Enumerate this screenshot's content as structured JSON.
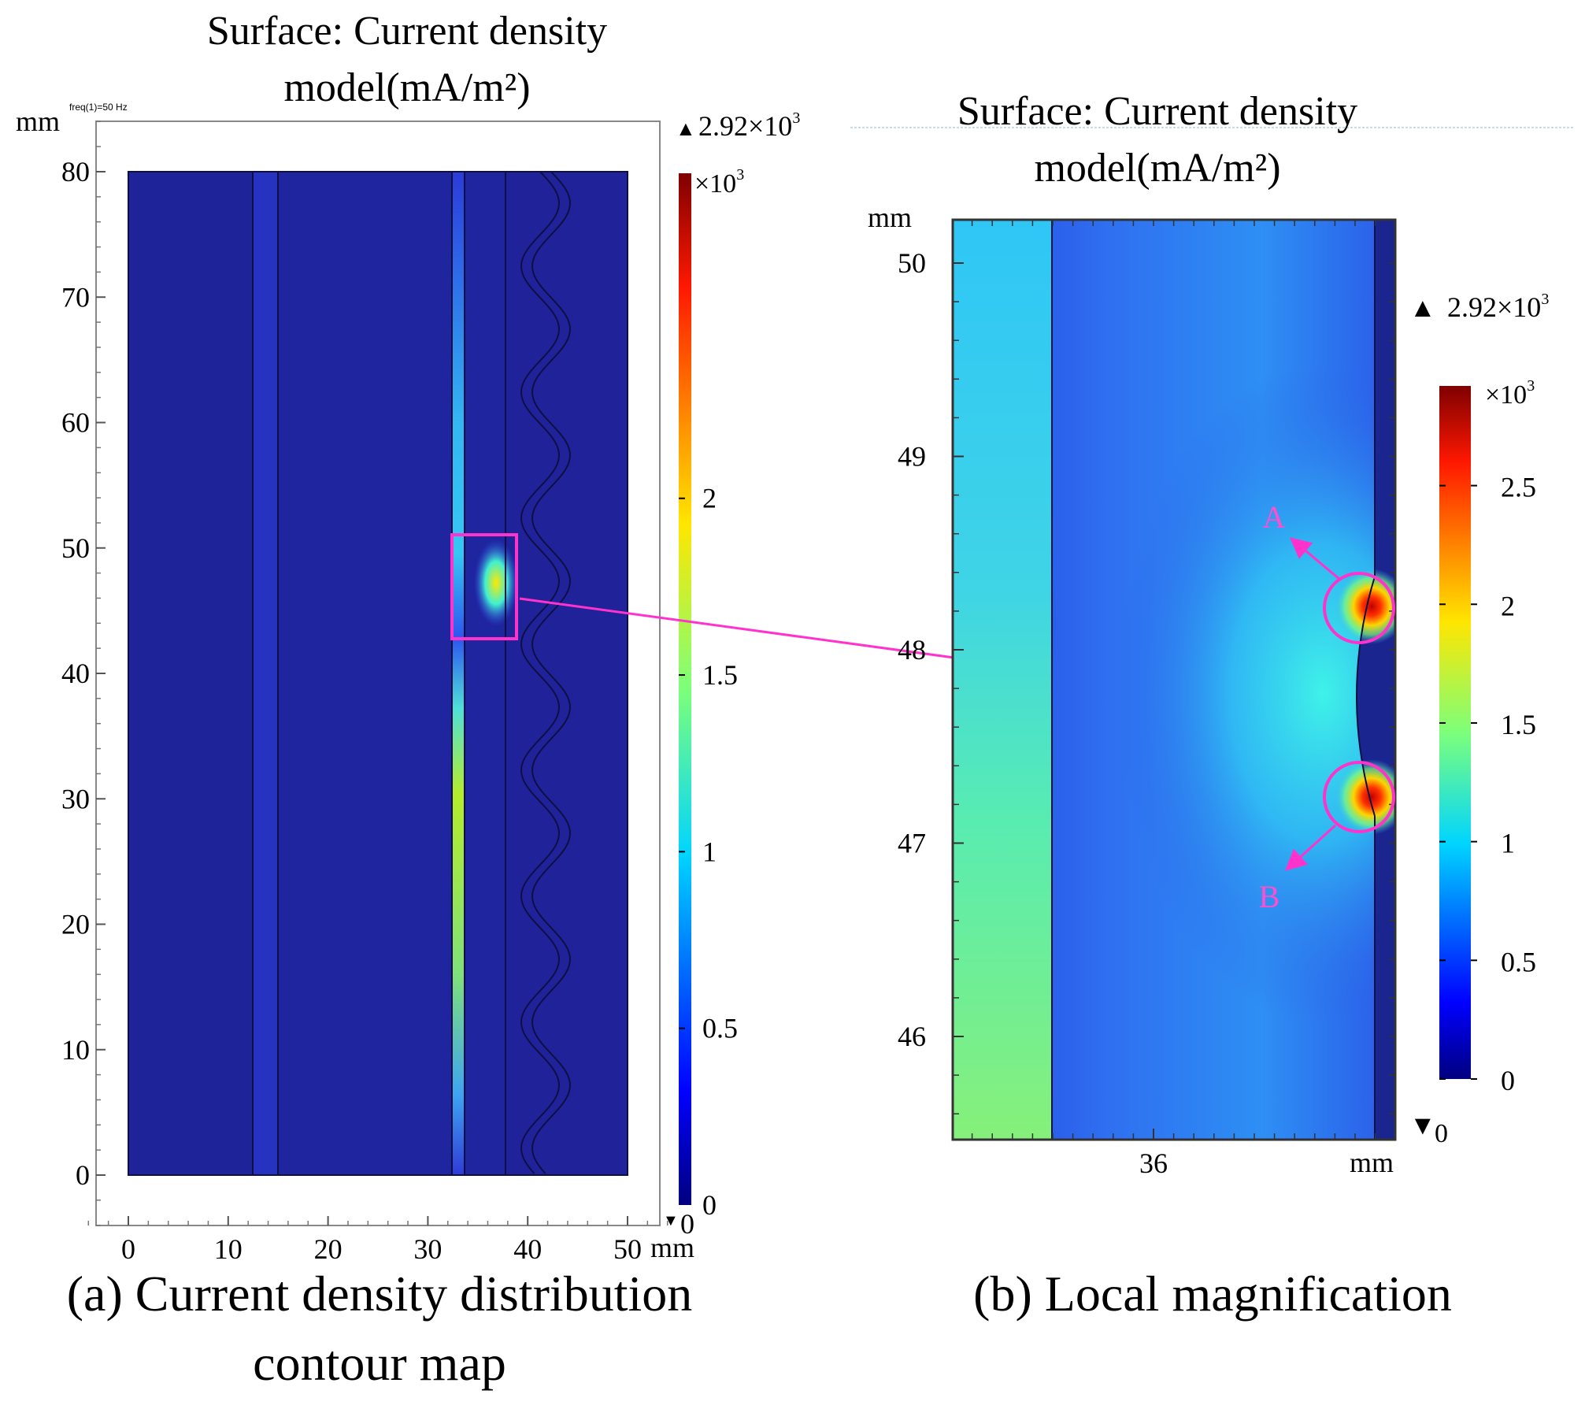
{
  "colors": {
    "annotation": "#ff33cc",
    "annotation_text": "#ff4fd0",
    "background_field": "#20229a",
    "frame": "#000000"
  },
  "chart_data": [
    {
      "type": "heatmap",
      "panel": "a",
      "title_line1": "Surface: Current density",
      "title_line2": "model(mA/m²)",
      "note": "freq(1)=50 Hz",
      "x_unit": "mm",
      "y_unit": "mm",
      "xlim": [
        -4,
        54
      ],
      "ylim": [
        -4,
        84
      ],
      "x_ticks": [
        0,
        10,
        20,
        30,
        40,
        50
      ],
      "y_ticks": [
        0,
        10,
        20,
        30,
        40,
        50,
        60,
        70,
        80
      ],
      "domain": {
        "x": [
          0,
          50
        ],
        "y": [
          0,
          80
        ]
      },
      "regions": [
        {
          "name": "left-block",
          "x": [
            0,
            12.5
          ],
          "value": 0.02
        },
        {
          "name": "thin-layer",
          "x": [
            12.5,
            15
          ],
          "value": 0.15
        },
        {
          "name": "middle-block",
          "x": [
            15,
            32.8
          ],
          "value": 0.05
        },
        {
          "name": "conductor-strip",
          "x": [
            32.8,
            34
          ],
          "value_profile": "varies with y; 0.8 at bottom to 1.3 near y=40, peak near y=47"
        },
        {
          "name": "gap",
          "x": [
            34,
            37.5
          ],
          "value": 0.05
        },
        {
          "name": "wavy-layer",
          "x": [
            37.5,
            50
          ],
          "value": 0.02
        }
      ],
      "zoom_box": {
        "x": [
          32.8,
          39.3
        ],
        "y": [
          42.7,
          51
        ]
      },
      "colorbar": {
        "label_multiplier": "×10",
        "label_exponent": "3",
        "max_label": "2.92×10",
        "max_exponent": "3",
        "min_label": "0",
        "max": 2.92,
        "min": 0,
        "ticks": [
          0,
          0.5,
          1,
          1.5,
          2
        ],
        "tick_labels": [
          "0",
          "0.5",
          "1",
          "1.5",
          "2"
        ]
      },
      "caption_line1": "(a) Current density distribution",
      "caption_line2": "contour map"
    },
    {
      "type": "heatmap",
      "panel": "b",
      "title_line1": "Surface: Current density",
      "title_line2": "model(mA/m²)",
      "x_unit": "mm",
      "y_unit": "mm",
      "xlim": [
        33.0,
        39.5
      ],
      "ylim": [
        45.4,
        50.2
      ],
      "x_ticks": [
        36
      ],
      "y_ticks": [
        46,
        47,
        48,
        49,
        50
      ],
      "regions": [
        {
          "name": "conductor-strip",
          "x": [
            33.0,
            34.0
          ],
          "value_profile": "0.9 at top to 1.3 at bottom"
        },
        {
          "name": "gap-field",
          "x": [
            34.0,
            38.0
          ],
          "value_profile": "low at left, rising toward curved edge"
        },
        {
          "name": "dark-layer",
          "x": [
            38.0,
            39.5
          ],
          "value": 0.05
        }
      ],
      "hotspots": [
        {
          "label": "A",
          "y": 48.2,
          "value": 2.92
        },
        {
          "label": "B",
          "y": 47.2,
          "value": 2.9
        }
      ],
      "colorbar": {
        "label_multiplier": "×10",
        "label_exponent": "3",
        "max_label": "2.92×10",
        "max_exponent": "3",
        "min_label": "0",
        "max": 2.92,
        "min": 0,
        "ticks": [
          0,
          0.5,
          1,
          1.5,
          2,
          2.5
        ],
        "tick_labels": [
          "0",
          "0.5",
          "1",
          "1.5",
          "2",
          "2.5"
        ]
      },
      "caption": "(b) Local magnification"
    }
  ]
}
